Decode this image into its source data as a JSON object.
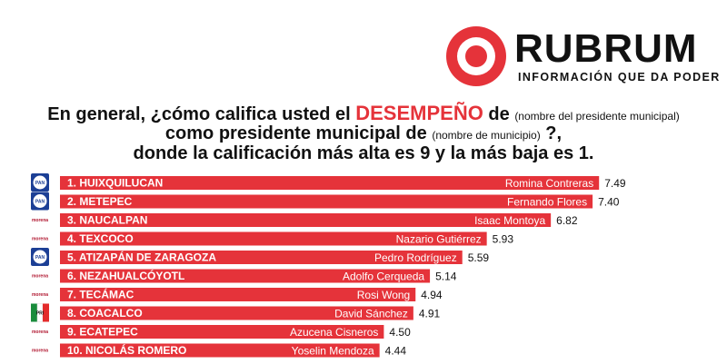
{
  "brand": {
    "name": "RUBRUM",
    "tagline": "INFORMACIÓN QUE DA PODER",
    "accent_color": "#e5333a"
  },
  "question": {
    "line1_pre": "En general, ¿cómo califica usted el",
    "line1_highlight": "DESEMPEÑO",
    "line1_post": "de",
    "line1_small": "(nombre del presidente municipal)",
    "line2_pre": "como presidente municipal de",
    "line2_small": "(nombre de municipio)",
    "line2_post": "?,",
    "line3": "donde la calificación más alta es 9 y la más baja es 1."
  },
  "chart_data": {
    "type": "bar",
    "orientation": "horizontal",
    "title": "En general, ¿cómo califica usted el DESEMPEÑO de (nombre del presidente municipal) como presidente municipal de (nombre de municipio)?, donde la calificación más alta es 9 y la más baja es 1.",
    "xlim": [
      0,
      9
    ],
    "bar_color": "#e5333a",
    "categories": [
      "1. HUIXQUILUCAN",
      "2. METEPEC",
      "3. NAUCALPAN",
      "4. TEXCOCO",
      "5. ATIZAPÁN DE ZARAGOZA",
      "6. NEZAHUALCÓYOTL",
      "7. TECÁMAC",
      "8. COACALCO",
      "9. ECATEPEC",
      "10. NICOLÁS ROMERO"
    ],
    "names": [
      "Romina Contreras",
      "Fernando Flores",
      "Isaac Montoya",
      "Nazario Gutiérrez",
      "Pedro Rodríguez",
      "Adolfo Cerqueda",
      "Rosi Wong",
      "David Sánchez",
      "Azucena Cisneros",
      "Yoselin Mendoza"
    ],
    "values": [
      7.49,
      7.4,
      6.82,
      5.93,
      5.59,
      5.14,
      4.94,
      4.91,
      4.5,
      4.44
    ],
    "party_logos": [
      "PAN",
      "PAN",
      "morena",
      "morena",
      "PAN",
      "morena",
      "morena",
      "PRI",
      "morena",
      "morena"
    ]
  }
}
